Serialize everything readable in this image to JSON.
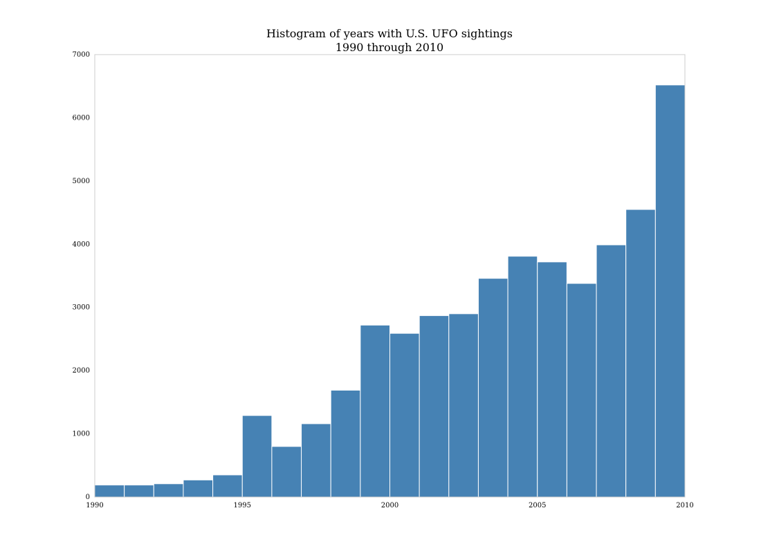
{
  "chart_data": {
    "type": "bar",
    "title": "Histogram of years with U.S. UFO sightings",
    "subtitle": "1990 through 2010",
    "xlabel": "",
    "ylabel": "",
    "xlim": [
      1990,
      2010
    ],
    "ylim": [
      0,
      7000
    ],
    "grid": false,
    "bar_color": "#4682b4",
    "bins": [
      {
        "start": 1990,
        "end": 1991,
        "value": 190
      },
      {
        "start": 1991,
        "end": 1992,
        "value": 190
      },
      {
        "start": 1992,
        "end": 1993,
        "value": 210
      },
      {
        "start": 1993,
        "end": 1994,
        "value": 270
      },
      {
        "start": 1994,
        "end": 1995,
        "value": 350
      },
      {
        "start": 1995,
        "end": 1996,
        "value": 1290
      },
      {
        "start": 1996,
        "end": 1997,
        "value": 800
      },
      {
        "start": 1997,
        "end": 1998,
        "value": 1160
      },
      {
        "start": 1998,
        "end": 1999,
        "value": 1690
      },
      {
        "start": 1999,
        "end": 2000,
        "value": 2720
      },
      {
        "start": 2000,
        "end": 2001,
        "value": 2590
      },
      {
        "start": 2001,
        "end": 2002,
        "value": 2870
      },
      {
        "start": 2002,
        "end": 2003,
        "value": 2900
      },
      {
        "start": 2003,
        "end": 2004,
        "value": 3460
      },
      {
        "start": 2004,
        "end": 2005,
        "value": 3810
      },
      {
        "start": 2005,
        "end": 2006,
        "value": 3720
      },
      {
        "start": 2006,
        "end": 2007,
        "value": 3380
      },
      {
        "start": 2007,
        "end": 2008,
        "value": 3990
      },
      {
        "start": 2008,
        "end": 2009,
        "value": 4550
      },
      {
        "start": 2009,
        "end": 2010,
        "value": 6520
      }
    ],
    "x_ticks": [
      1990,
      1995,
      2000,
      2005,
      2010
    ],
    "y_ticks": [
      0,
      1000,
      2000,
      3000,
      4000,
      5000,
      6000,
      7000
    ]
  }
}
